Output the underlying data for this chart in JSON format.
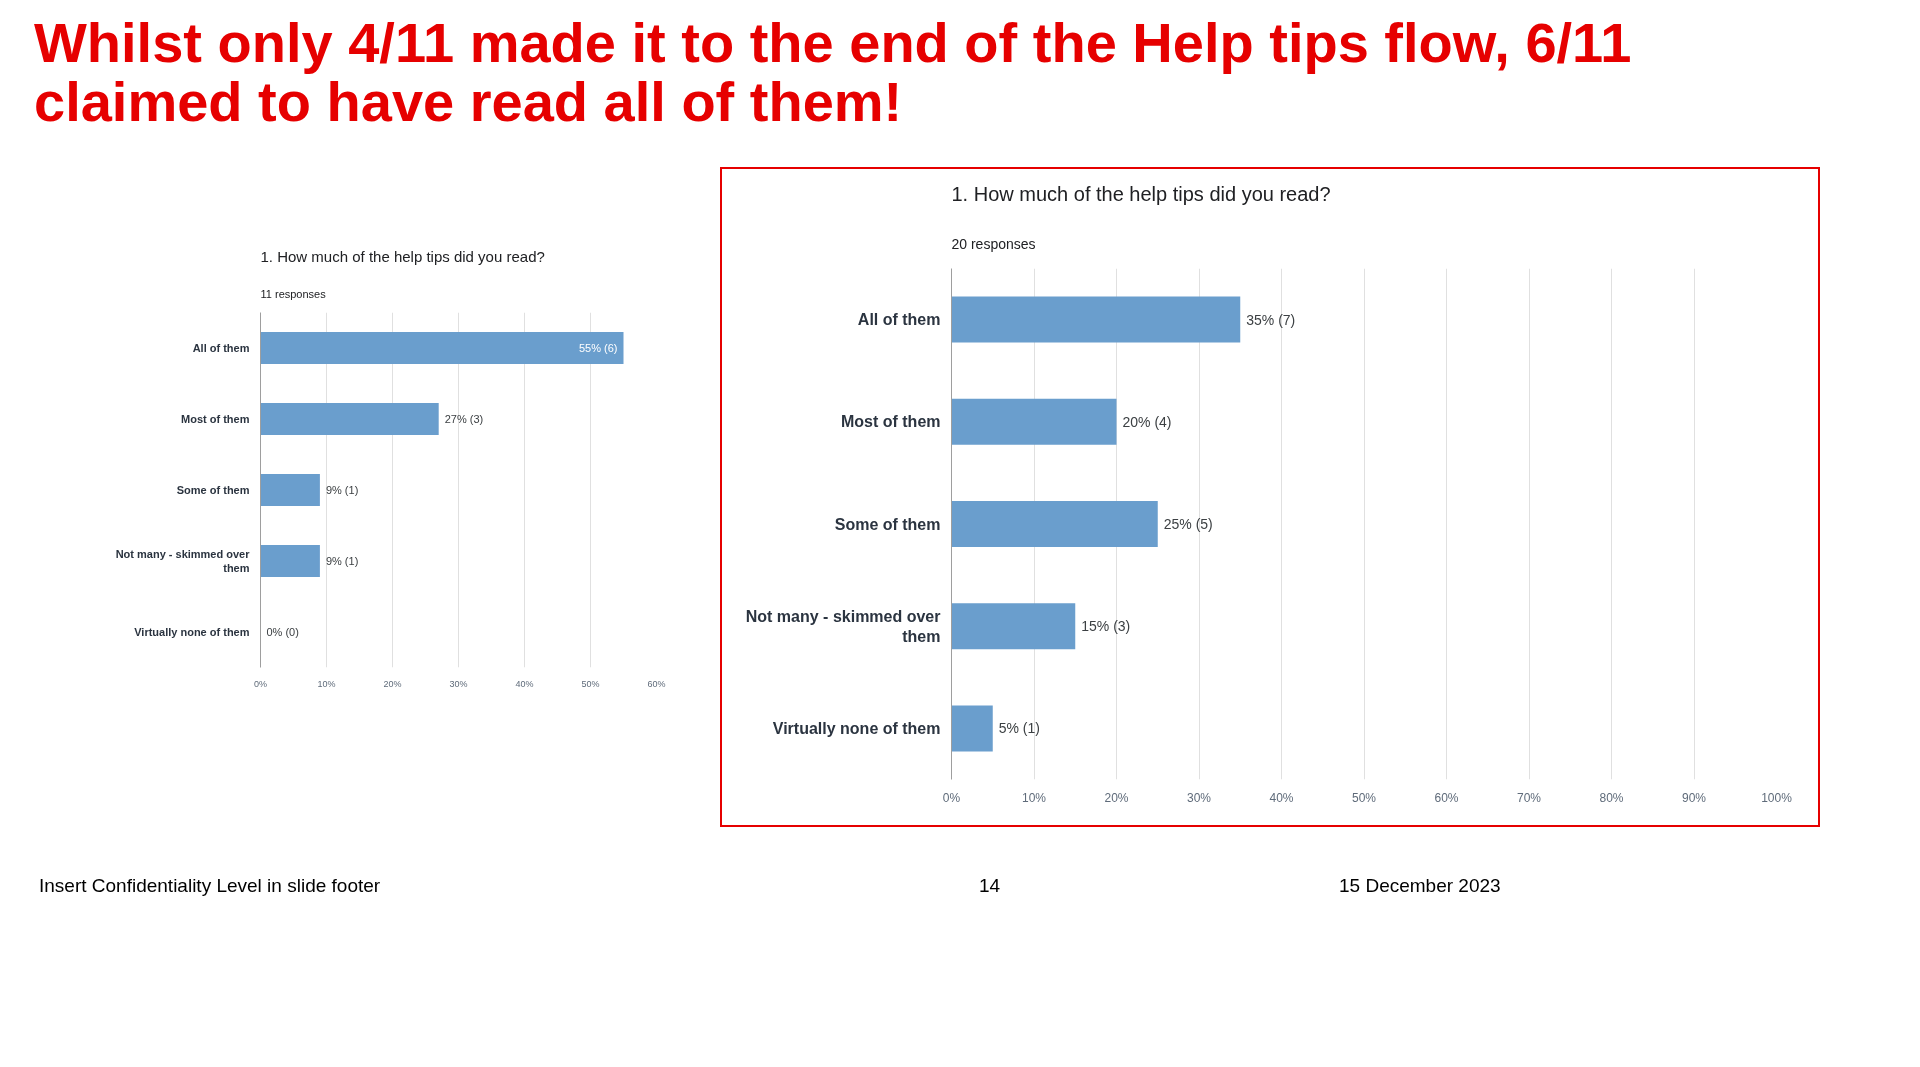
{
  "chart_data": [
    {
      "type": "bar",
      "orientation": "horizontal",
      "title": "1. How much of the help tips did you read?",
      "subtitle": "11 responses",
      "categories": [
        "All of them",
        "Most of them",
        "Some of them",
        "Not many - skimmed over them",
        "Virtually none of them"
      ],
      "values": [
        55,
        27,
        9,
        9,
        0
      ],
      "color": "#6a9ecd",
      "value_labels": [
        "55% (6)",
        "27% (3)",
        "9% (1)",
        "9% (1)",
        "0% (0)"
      ],
      "xlim": [
        0,
        60
      ],
      "xticks": [
        {
          "value": 0,
          "label": "0%"
        },
        {
          "value": 10,
          "label": "10%"
        },
        {
          "value": 20,
          "label": "20%"
        },
        {
          "value": 30,
          "label": "30%"
        },
        {
          "value": 40,
          "label": "40%"
        },
        {
          "value": 50,
          "label": "50%"
        },
        {
          "value": 60,
          "label": "60%"
        }
      ],
      "grid": "x",
      "annotations": [
        "Whilst only 4/11 made it to the end of the Help tips flow, 6/11 claimed to have read all of them!",
        "Insert Confidentiality Level in slide footer",
        "14",
        "15 December 2023"
      ]
    },
    {
      "type": "bar",
      "orientation": "horizontal",
      "title": "1. How much of the help tips did you read?",
      "subtitle": "20 responses",
      "categories": [
        "All of them",
        "Most of them",
        "Some of them",
        "Not many - skimmed over them",
        "Virtually none of them"
      ],
      "values": [
        35,
        20,
        25,
        15,
        5
      ],
      "color": "#6a9ecd",
      "value_labels": [
        "35% (7)",
        "20% (4)",
        "25% (5)",
        "15% (3)",
        "5% (1)"
      ],
      "xlim": [
        0,
        100
      ],
      "xticks": [
        {
          "value": 0,
          "label": "0%"
        },
        {
          "value": 10,
          "label": "10%"
        },
        {
          "value": 20,
          "label": "20%"
        },
        {
          "value": 30,
          "label": "30%"
        },
        {
          "value": 40,
          "label": "40%"
        },
        {
          "value": 50,
          "label": "50%"
        },
        {
          "value": 60,
          "label": "60%"
        },
        {
          "value": 70,
          "label": "70%"
        },
        {
          "value": 80,
          "label": "80%"
        },
        {
          "value": 90,
          "label": "90%"
        },
        {
          "value": 100,
          "label": "100%"
        }
      ],
      "grid": "x"
    }
  ]
}
